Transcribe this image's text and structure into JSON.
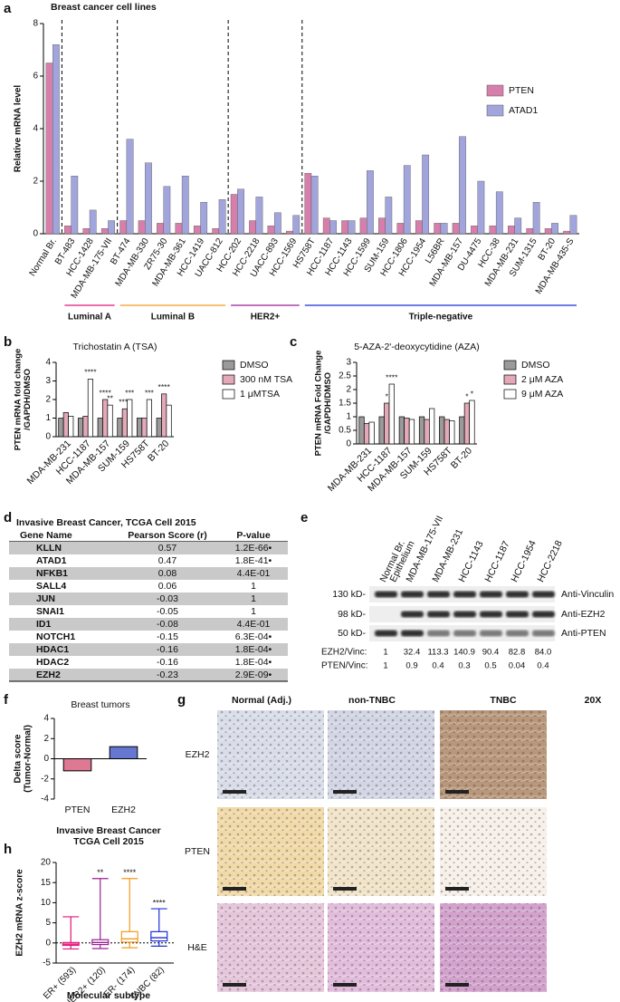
{
  "panel_labels": [
    "a",
    "b",
    "c",
    "d",
    "e",
    "f",
    "g",
    "h"
  ],
  "chart_data": [
    {
      "type": "bar",
      "title": "Breast cancer cell lines",
      "y_label": "Relative mRNA level",
      "categories": [
        "Normal Br.",
        "BT-483",
        "HCC-1428",
        "MDA-MB-175-VII",
        "BT-474",
        "MDA-MB-330",
        "ZR75-30",
        "MDA-MB-361",
        "HCC-1419",
        "UACC-812",
        "HCC-202",
        "HCC-2218",
        "UACC-893",
        "HCC-1569",
        "HS758T",
        "HCC-1187",
        "HCC-1143",
        "HCC-1599",
        "SUM-159",
        "HCC-1806",
        "HCC-1954",
        "L56BR",
        "MDA-MB-157",
        "DU-4475",
        "HCC-38",
        "MDA-MB-231",
        "SUM-1315",
        "BT-20",
        "MDA-MB-435-S"
      ],
      "category_colors": [
        "#000000",
        "#e3157a",
        "#e3157a",
        "#e3157a",
        "#f39a1e",
        "#f39a1e",
        "#f39a1e",
        "#f39a1e",
        "#f39a1e",
        "#f39a1e",
        "#9b1f95",
        "#9b1f95",
        "#9b1f95",
        "#9b1f95",
        "#1f2fd8",
        "#1f2fd8",
        "#1f2fd8",
        "#1f2fd8",
        "#1f2fd8",
        "#1f2fd8",
        "#1f2fd8",
        "#1f2fd8",
        "#1f2fd8",
        "#1f2fd8",
        "#1f2fd8",
        "#1f2fd8",
        "#1f2fd8",
        "#1f2fd8",
        "#1f2fd8"
      ],
      "groups": [
        {
          "name": "Luminal A",
          "color": "#e3157a"
        },
        {
          "name": "Luminal B",
          "color": "#f39a1e"
        },
        {
          "name": "HER2+",
          "color": "#9b1f95"
        },
        {
          "name": "Triple-negative",
          "color": "#1f2fd8"
        }
      ],
      "series": [
        {
          "name": "PTEN",
          "color": "#d77fab",
          "values": [
            6.5,
            0.3,
            0.2,
            0.2,
            0.5,
            0.5,
            0.4,
            0.4,
            0.3,
            0.2,
            1.5,
            0.5,
            0.3,
            0.1,
            2.3,
            0.6,
            0.5,
            0.6,
            0.6,
            0.4,
            0.5,
            0.4,
            0.4,
            0.3,
            0.3,
            0.3,
            0.2,
            0.2,
            0.1
          ]
        },
        {
          "name": "ATAD1",
          "color": "#a2a5dc",
          "values": [
            7.2,
            2.2,
            0.9,
            0.5,
            3.6,
            2.7,
            1.8,
            2.2,
            1.2,
            1.3,
            1.7,
            1.4,
            0.8,
            0.7,
            2.2,
            0.5,
            0.5,
            2.4,
            1.4,
            2.6,
            3.0,
            0.4,
            3.7,
            2.0,
            1.6,
            0.6,
            1.2,
            0.4,
            0.7
          ]
        }
      ],
      "ylim": [
        0,
        8
      ],
      "yticks": [
        0,
        2,
        4,
        6,
        8
      ],
      "legend": "upper right"
    },
    {
      "type": "grouped-bar",
      "title": "Trichostatin A (TSA)",
      "y_label": [
        "PTEN mRNA fold change",
        "/GAPDH/DMSO"
      ],
      "categories": [
        "MDA-MB-231",
        "HCC-1187",
        "MDA-MB-157",
        "SUM-159",
        "HS758T",
        "BT-20"
      ],
      "category_color": "#1f2fd8",
      "series": [
        {
          "name": "DMSO",
          "color": "#9a9a9a",
          "values": [
            1.0,
            1.0,
            1.0,
            1.0,
            1.0,
            1.0
          ],
          "significance": [
            null,
            null,
            null,
            null,
            null,
            null
          ]
        },
        {
          "name": "300 nM TSA",
          "color": "#e3a9b8",
          "values": [
            1.3,
            1.1,
            2.0,
            1.5,
            1.0,
            2.3
          ],
          "significance": [
            null,
            null,
            "****",
            "****",
            null,
            "****"
          ]
        },
        {
          "name": "1 μMTSA",
          "color": "#ffffff",
          "values": [
            1.1,
            3.1,
            1.7,
            2.0,
            2.0,
            1.7
          ],
          "significance": [
            null,
            "****",
            "**",
            "***",
            "***",
            null
          ]
        }
      ],
      "ylim": [
        0,
        4
      ],
      "yticks": [
        0,
        1,
        2,
        3,
        4
      ],
      "legend": "right"
    },
    {
      "type": "grouped-bar",
      "title": "5-AZA-2'-deoxycytidine (AZA)",
      "y_label": [
        "PTEN mRNA Fold Change",
        "/GAPDH/DMSO"
      ],
      "categories": [
        "MDA-MB-231",
        "HCC-1187",
        "MDA-MB-157",
        "SUM-159",
        "HS758T",
        "BT-20"
      ],
      "category_color": "#1f2fd8",
      "series": [
        {
          "name": "DMSO",
          "color": "#9a9a9a",
          "values": [
            1.0,
            1.0,
            1.0,
            1.0,
            1.0,
            1.0
          ],
          "significance": [
            null,
            null,
            null,
            null,
            null,
            null
          ]
        },
        {
          "name": "2 μM AZA",
          "color": "#e3a9b8",
          "values": [
            0.75,
            1.5,
            0.95,
            0.9,
            0.9,
            1.5
          ],
          "significance": [
            null,
            "*",
            null,
            null,
            null,
            "*"
          ]
        },
        {
          "name": "9 μM AZA",
          "color": "#ffffff",
          "values": [
            0.8,
            2.2,
            0.9,
            1.3,
            0.85,
            1.6
          ],
          "significance": [
            null,
            "****",
            null,
            null,
            null,
            "*"
          ]
        }
      ],
      "ylim": [
        0,
        3
      ],
      "yticks": [
        0,
        0.5,
        1,
        1.5,
        2,
        2.5,
        3
      ],
      "legend": "right"
    },
    {
      "type": "bar",
      "title": "Breast tumors",
      "y_label": [
        "Delta score",
        "(Tumor-Normal)"
      ],
      "categories": [
        "PTEN",
        "EZH2"
      ],
      "colors": [
        "#d9607f",
        "#4a5fc8"
      ],
      "values": [
        -1.2,
        1.2
      ],
      "ylim": [
        -4,
        4
      ],
      "yticks": [
        -4,
        -2,
        0,
        2,
        4
      ]
    },
    {
      "type": "box",
      "title": [
        "Invasive Breast Cancer",
        "TCGA Cell 2015"
      ],
      "y_label": "EZH2 mRNA z-score",
      "x_label": "Molecular subtype",
      "categories": [
        "ER+ (593)",
        "HER2+ (120)",
        "ER- (174)",
        "TNBC (82)"
      ],
      "colors": [
        "#e3157a",
        "#9b1f95",
        "#f39a1e",
        "#1f2fd8"
      ],
      "boxes": [
        {
          "min": -1.5,
          "q1": -0.6,
          "median": -0.3,
          "q3": 0.1,
          "max": 6.5
        },
        {
          "min": -1.4,
          "q1": -0.4,
          "median": 0.1,
          "q3": 0.8,
          "max": 16
        },
        {
          "min": -1.2,
          "q1": 0.2,
          "median": 1.0,
          "q3": 2.8,
          "max": 16
        },
        {
          "min": -0.8,
          "q1": 0.5,
          "median": 1.3,
          "q3": 2.8,
          "max": 8.5
        }
      ],
      "significance": [
        null,
        "**",
        "****",
        "****"
      ],
      "ylim": [
        -5,
        20
      ],
      "yticks": [
        -5,
        0,
        5,
        10,
        15,
        20
      ]
    }
  ],
  "table": {
    "title": "Invasive Breast Cancer, TCGA Cell 2015",
    "columns": [
      "Gene Name",
      "Pearson Score (r)",
      "P-value"
    ],
    "rows": [
      [
        "KLLN",
        "0.57",
        "1.2E-66•"
      ],
      [
        "ATAD1",
        "0.47",
        "1.8E-41•"
      ],
      [
        "NFKB1",
        "0.08",
        "4.4E-01"
      ],
      [
        "SALL4",
        "0.06",
        "1"
      ],
      [
        "JUN",
        "-0.03",
        "1"
      ],
      [
        "SNAI1",
        "-0.05",
        "1"
      ],
      [
        "ID1",
        "-0.08",
        "4.4E-01"
      ],
      [
        "NOTCH1",
        "-0.15",
        "6.3E-04•"
      ],
      [
        "HDAC1",
        "-0.16",
        "1.8E-04•"
      ],
      [
        "HDAC2",
        "-0.16",
        "1.8E-04•"
      ],
      [
        "EZH2",
        "-0.23",
        "2.9E-09•"
      ]
    ]
  },
  "blot": {
    "lanes": [
      {
        "label": [
          "Normal Br.",
          "Epithelium"
        ],
        "color": "#000000"
      },
      {
        "label": [
          "MDA-MB-175-VII"
        ],
        "color": "#e3157a"
      },
      {
        "label": [
          "MDA-MB-231"
        ],
        "color": "#1f2fd8"
      },
      {
        "label": [
          "HCC-1143"
        ],
        "color": "#1f2fd8"
      },
      {
        "label": [
          "HCC-1187"
        ],
        "color": "#1f2fd8"
      },
      {
        "label": [
          "HCC-1954"
        ],
        "color": "#1f2fd8"
      },
      {
        "label": [
          "HCC-2218"
        ],
        "color": "#9b1f95"
      }
    ],
    "bands": [
      {
        "size": "130 kD-",
        "antibody": "Anti-Vinculin"
      },
      {
        "size": "98 kD-",
        "antibody": "Anti-EZH2"
      },
      {
        "size": "50 kD-",
        "antibody": "Anti-PTEN"
      }
    ],
    "quantification": [
      {
        "label": "EZH2/Vinc:",
        "values": [
          "1",
          "32.4",
          "113.3",
          "140.9",
          "90.4",
          "82.8",
          "84.0"
        ]
      },
      {
        "label": "PTEN/Vinc:",
        "values": [
          "1",
          "0.9",
          "0.4",
          "0.3",
          "0.5",
          "0.04",
          "0.4"
        ]
      }
    ]
  },
  "histology": {
    "columns": [
      "Normal (Adj.)",
      "non-TNBC",
      "TNBC"
    ],
    "magnification": "20X",
    "rows": [
      "EZH2",
      "PTEN",
      "H&E"
    ]
  }
}
